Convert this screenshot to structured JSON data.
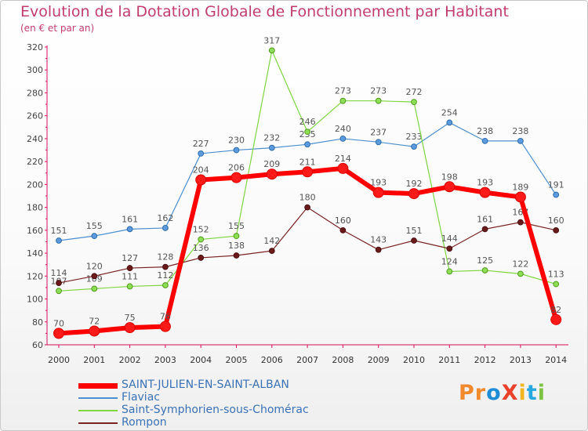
{
  "chart_data": {
    "type": "line",
    "title": "Evolution de la Dotation Globale de Fonctionnement par Habitant",
    "subtitle": "(en € et par an)",
    "xlabel": "",
    "ylabel": "",
    "categories": [
      "2000",
      "2001",
      "2002",
      "2003",
      "2004",
      "2005",
      "2006",
      "2007",
      "2008",
      "2009",
      "2010",
      "2011",
      "2012",
      "2013",
      "2014"
    ],
    "ylim": [
      60,
      320
    ],
    "yticks": [
      60,
      80,
      100,
      120,
      140,
      160,
      180,
      200,
      220,
      240,
      260,
      280,
      300,
      320
    ],
    "grid": false,
    "legend_position": "bottom-left",
    "series": [
      {
        "name": "Flaviac",
        "color": "#4b8fd1",
        "values": [
          151,
          155,
          161,
          162,
          227,
          230,
          232,
          235,
          240,
          237,
          233,
          254,
          238,
          238,
          191
        ]
      },
      {
        "name": "Saint-Symphorien-sous-Chomérac",
        "color": "#7fd641",
        "values": [
          107,
          109,
          111,
          112,
          152,
          155,
          317,
          246,
          273,
          273,
          272,
          124,
          125,
          122,
          113
        ]
      },
      {
        "name": "Rompon",
        "color": "#7a2424",
        "values": [
          114,
          120,
          127,
          128,
          136,
          138,
          142,
          180,
          160,
          143,
          151,
          144,
          161,
          167,
          160
        ]
      },
      {
        "name": "SAINT-JULIEN-EN-SAINT-ALBAN",
        "color": "#ff0000",
        "values": [
          70,
          72,
          75,
          76,
          204,
          206,
          209,
          211,
          214,
          193,
          192,
          198,
          193,
          189,
          82
        ]
      }
    ],
    "legend_order": [
      "SAINT-JULIEN-EN-SAINT-ALBAN",
      "Flaviac",
      "Saint-Symphorien-sous-Chomérac",
      "Rompon"
    ]
  },
  "logo": {
    "text": "ProXiti",
    "colors": [
      "#f08a2c",
      "#f08a2c",
      "#1f8dd6",
      "#e9412a",
      "#f3b51d",
      "#27a8e0",
      "#7dc242"
    ]
  }
}
